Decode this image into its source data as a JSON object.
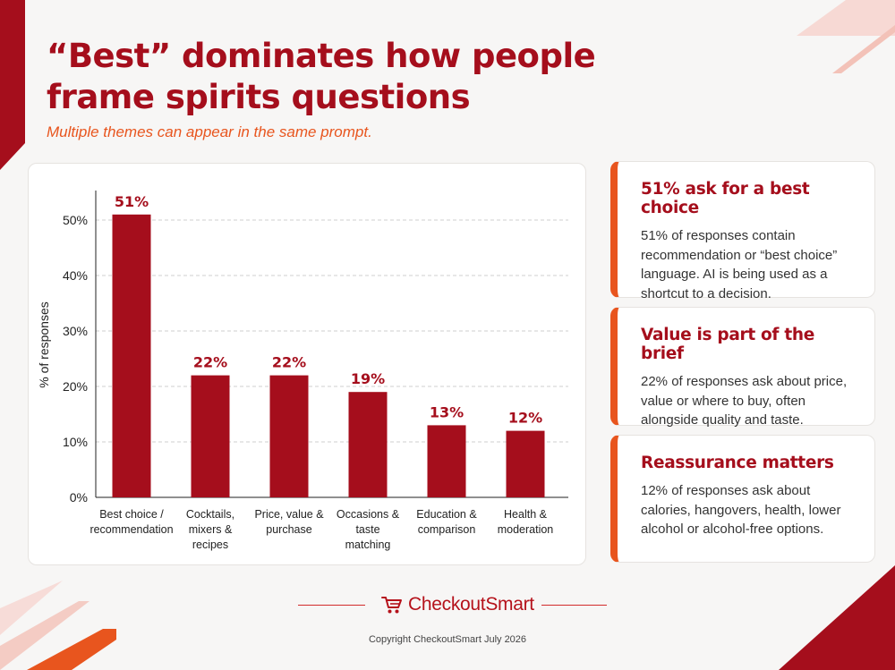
{
  "title": "“Best” dominates how people frame spirits questions",
  "subtitle": "Multiple themes can appear in the same prompt.",
  "chart_data": {
    "type": "bar",
    "ylabel": "% of responses",
    "ylim": [
      0,
      55
    ],
    "yticks": [
      0,
      10,
      20,
      30,
      40,
      50
    ],
    "ytick_labels": [
      "0%",
      "10%",
      "20%",
      "30%",
      "40%",
      "50%"
    ],
    "grid": true,
    "categories": [
      [
        "Best choice /",
        "recommendation"
      ],
      [
        "Cocktails,",
        "mixers &",
        "recipes"
      ],
      [
        "Price, value &",
        "purchase"
      ],
      [
        "Occasions &",
        "taste",
        "matching"
      ],
      [
        "Education &",
        "comparison"
      ],
      [
        "Health &",
        "moderation"
      ]
    ],
    "values": [
      51,
      22,
      22,
      19,
      13,
      12
    ],
    "value_labels": [
      "51%",
      "22%",
      "22%",
      "19%",
      "13%",
      "12%"
    ]
  },
  "colors": {
    "bar": "#a50e1c",
    "accent": "#e8551e",
    "title": "#a50e1c"
  },
  "insights": [
    {
      "heading": "51% ask for a best choice",
      "body": "51% of responses contain recommendation or “best choice” language. AI is being used as a shortcut to a decision."
    },
    {
      "heading": "Value is part of the brief",
      "body": "22% of responses ask about price, value or where to buy, often alongside quality and taste."
    },
    {
      "heading": "Reassurance matters",
      "body": "12% of responses ask about calories, hangovers, health, lower alcohol or alcohol-free options."
    }
  ],
  "footer": {
    "logo_icon": "shopping-cart-icon",
    "logo_text": "CheckoutSmart",
    "copyright": "Copyright CheckoutSmart July 2026"
  }
}
